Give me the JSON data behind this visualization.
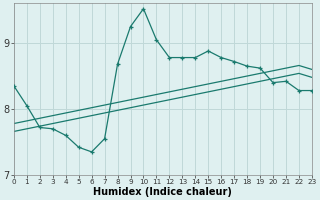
{
  "xlabel": "Humidex (Indice chaleur)",
  "bg_color": "#dff0f0",
  "line_color": "#1a7a6e",
  "grid_color": "#c0d8d8",
  "x_min": 0,
  "x_max": 23,
  "y_min": 7,
  "y_max": 9.6,
  "yticks": [
    7,
    8,
    9
  ],
  "xticks": [
    0,
    1,
    2,
    3,
    4,
    5,
    6,
    7,
    8,
    9,
    10,
    11,
    12,
    13,
    14,
    15,
    16,
    17,
    18,
    19,
    20,
    21,
    22,
    23
  ],
  "series1_x": [
    0,
    1,
    2,
    3,
    4,
    5,
    6,
    7,
    8,
    9,
    10,
    11,
    12,
    13,
    14,
    15,
    16,
    17,
    18,
    19,
    20,
    21,
    22,
    23
  ],
  "series1_y": [
    8.35,
    8.05,
    7.72,
    7.7,
    7.6,
    7.42,
    7.35,
    7.55,
    8.68,
    9.25,
    9.52,
    9.05,
    8.78,
    8.78,
    8.78,
    8.88,
    8.78,
    8.72,
    8.65,
    8.62,
    8.4,
    8.42,
    8.28,
    8.28
  ],
  "series2_x": [
    0,
    1,
    2,
    3,
    4,
    5,
    6,
    7,
    8,
    9,
    10,
    11,
    12,
    13,
    14,
    15,
    16,
    17,
    18,
    19,
    20,
    21,
    22,
    23
  ],
  "series2_y": [
    7.78,
    7.82,
    7.86,
    7.9,
    7.94,
    7.98,
    8.02,
    8.06,
    8.1,
    8.14,
    8.18,
    8.22,
    8.26,
    8.3,
    8.34,
    8.38,
    8.42,
    8.46,
    8.5,
    8.54,
    8.58,
    8.62,
    8.66,
    8.6
  ],
  "series3_x": [
    0,
    1,
    2,
    3,
    4,
    5,
    6,
    7,
    8,
    9,
    10,
    11,
    12,
    13,
    14,
    15,
    16,
    17,
    18,
    19,
    20,
    21,
    22,
    23
  ],
  "series3_y": [
    7.66,
    7.7,
    7.74,
    7.78,
    7.82,
    7.86,
    7.9,
    7.94,
    7.98,
    8.02,
    8.06,
    8.1,
    8.14,
    8.18,
    8.22,
    8.26,
    8.3,
    8.34,
    8.38,
    8.42,
    8.46,
    8.5,
    8.54,
    8.48
  ]
}
